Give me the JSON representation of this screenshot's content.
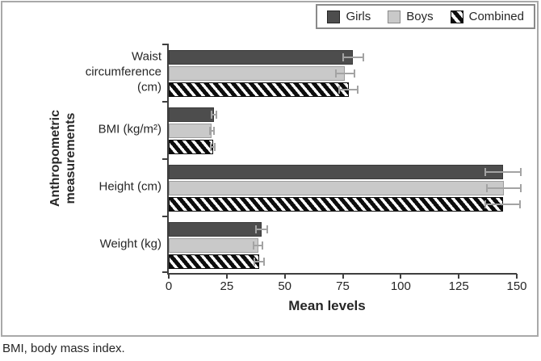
{
  "figure": {
    "footnote": "BMI, body mass index.",
    "y_axis_title_line1": "Anthropometric",
    "y_axis_title_line2": "measurements",
    "x_axis_title": "Mean levels"
  },
  "chart_data": {
    "type": "bar",
    "orientation": "horizontal",
    "title": "",
    "xlabel": "Mean levels",
    "ylabel": "Anthropometric measurements",
    "xlim": [
      0,
      150
    ],
    "x_ticks": [
      0,
      25,
      50,
      75,
      100,
      125,
      150
    ],
    "grid": false,
    "legend_position": "top-right",
    "error_bar_color": "#a3a3a3",
    "categories": [
      "Waist circumference (cm)",
      "BMI (kg/m²)",
      "Height (cm)",
      "Weight (kg)"
    ],
    "series": [
      {
        "name": "Girls",
        "color": "#4d4d4d",
        "values": [
          79.5,
          19.5,
          144,
          40
        ],
        "errors": [
          4.3,
          1.2,
          7.7,
          2.4
        ]
      },
      {
        "name": "Boys",
        "color": "#c9c9c9",
        "values": [
          76,
          18.5,
          144.5,
          38.5
        ],
        "errors": [
          4,
          0.9,
          7.3,
          2
        ]
      },
      {
        "name": "Combined",
        "pattern": "black-diagonal-hatch",
        "color": "#ffffff",
        "values": [
          77.5,
          19,
          144,
          39
        ],
        "errors": [
          4,
          1,
          7.5,
          2
        ]
      }
    ]
  }
}
